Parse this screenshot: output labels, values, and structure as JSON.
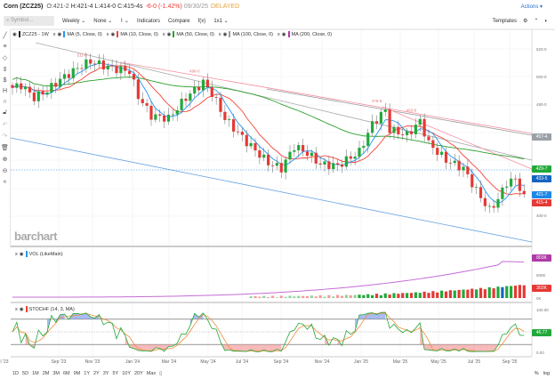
{
  "header": {
    "symbol": "Corn (ZCZ25)",
    "open": "O:421-2",
    "high": "H:421-4",
    "low": "L:414-0",
    "close": "C:415-4s",
    "change": "-6-0 (-1.42%)",
    "date": "09/30/25",
    "status": "DELAYED",
    "actions": "Actions ▾"
  },
  "toolbar": {
    "search_placeholder": "Symbol...",
    "interval": "Weekly ⌄",
    "none": "None ⌄",
    "chart_type": "⌇ ⌄",
    "indicators": "Indicators",
    "compare": "Compare",
    "fx": "f(x)",
    "layout": "1x1 ⌄",
    "templates": "Templates"
  },
  "legend": [
    {
      "label": "ZCZ25 - 1W",
      "color": "#222222"
    },
    {
      "label": "MA (5, Close, 0)",
      "color": "#2196f3"
    },
    {
      "label": "MA (10, Close, 0)",
      "color": "#f44336"
    },
    {
      "label": "MA (50, Close, 0)",
      "color": "#2ca02c"
    },
    {
      "label": "MA (100, Close, 0)",
      "color": "#9e9e9e"
    },
    {
      "label": "MA (200, Close, 0)",
      "color": "#b03aa8"
    }
  ],
  "price_axis": [
    "520-0",
    "500-0",
    "480-0",
    "400-0"
  ],
  "badges": [
    {
      "text": "457-4",
      "color": "#9aa0a6"
    },
    {
      "text": "429-7",
      "color": "#22a83a"
    },
    {
      "text": "433-5",
      "color": "#1565c0"
    },
    {
      "text": "421-7",
      "color": "#1e88e5"
    },
    {
      "text": "415-4",
      "color": "#e53935"
    }
  ],
  "annotations": [
    "511-0",
    "498-0",
    "476-6",
    "463-6"
  ],
  "watermark": "barchart",
  "volume": {
    "label": "VOL (LikeMain)",
    "axis": [
      "800K",
      "500K",
      "0K"
    ],
    "badge_oi": "803K",
    "badge_vol": "302K",
    "oi_color": "#c56cd6"
  },
  "stoch": {
    "label": "STOCHF (14, 3, MA)",
    "axis": [
      "100.00",
      "0.00"
    ],
    "badge": "46.77",
    "upper": 80,
    "lower": 20
  },
  "x_labels": [
    "l '23",
    "Sep '23",
    "Nov '23",
    "Jan '24",
    "Mar '24",
    "May '24",
    "Jul '24",
    "Sep '24",
    "Nov '24",
    "Jan '25",
    "Mar '25",
    "May '25",
    "Jul '25",
    "Sep '25"
  ],
  "ranges": [
    "1D",
    "5D",
    "1M",
    "2M",
    "3M",
    "6M",
    "9M",
    "1Y",
    "2Y",
    "3Y",
    "5Y",
    "10Y",
    "20Y",
    "Max"
  ],
  "bottom_right": [
    "%",
    "log"
  ],
  "chart_data": {
    "type": "candlestick",
    "interval": "weekly",
    "weeks": 119,
    "close_keypoints": [
      [
        0,
        492
      ],
      [
        2,
        494
      ],
      [
        5,
        485
      ],
      [
        8,
        490
      ],
      [
        11,
        498
      ],
      [
        16,
        508
      ],
      [
        18,
        511
      ],
      [
        23,
        506
      ],
      [
        27,
        504
      ],
      [
        29,
        486
      ],
      [
        32,
        472
      ],
      [
        36,
        470
      ],
      [
        40,
        485
      ],
      [
        44,
        496
      ],
      [
        46,
        488
      ],
      [
        49,
        470
      ],
      [
        54,
        453
      ],
      [
        59,
        438
      ],
      [
        62,
        434
      ],
      [
        65,
        450
      ],
      [
        68,
        445
      ],
      [
        71,
        437
      ],
      [
        75,
        436
      ],
      [
        80,
        446
      ],
      [
        83,
        466
      ],
      [
        86,
        476
      ],
      [
        87,
        462
      ],
      [
        91,
        458
      ],
      [
        94,
        468
      ],
      [
        96,
        452
      ],
      [
        100,
        440
      ],
      [
        104,
        434
      ],
      [
        107,
        418
      ],
      [
        110,
        404
      ],
      [
        112,
        412
      ],
      [
        114,
        424
      ],
      [
        116,
        426
      ],
      [
        118,
        415
      ]
    ],
    "ylim": [
      395,
      525
    ]
  }
}
